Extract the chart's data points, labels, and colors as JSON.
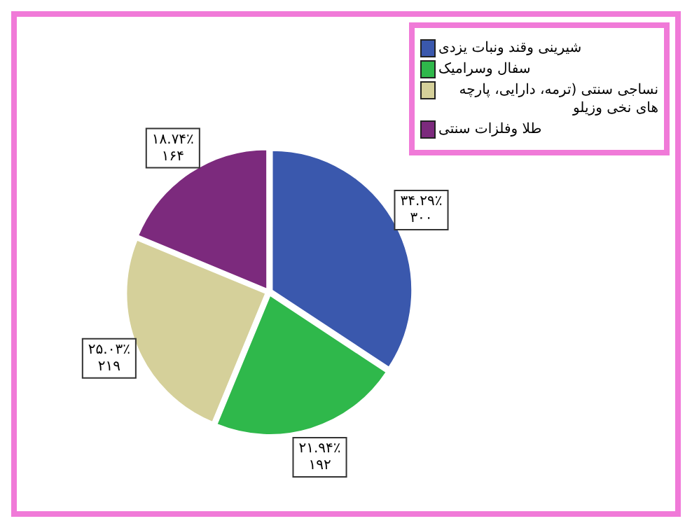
{
  "chart_data": {
    "type": "pie",
    "categories": [
      "شیرینی وقند ونبات یزدی",
      "سفال وسرامیک",
      "نساجی سنتی (ترمه، دارایی، پارچه های نخی وزیلو",
      "طلا وفلزات سنتی"
    ],
    "values": [
      300,
      192,
      219,
      164
    ],
    "colors": [
      "#3a58ad",
      "#2fb84b",
      "#d5d09a",
      "#7c2a7d"
    ],
    "value_labels": [
      "۳۴.۲۹٪ ۳۰۰",
      "۲۱.۹۴٪ ۱۹۲",
      "۲۵.۰۳٪ ۲۱۹",
      "۱۸.۷۴٪ ۱۶۴"
    ],
    "legend": "top right"
  }
}
